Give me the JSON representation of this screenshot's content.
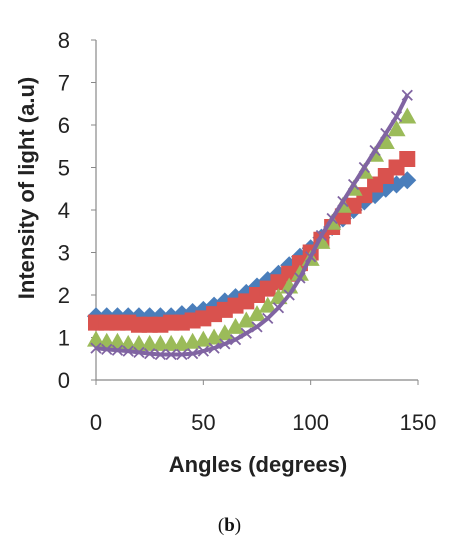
{
  "chart_data": {
    "type": "line",
    "xlabel": "Angles (degrees)",
    "ylabel": "Intensity of light (a.u)",
    "xlim": [
      0,
      150
    ],
    "ylim": [
      0,
      8
    ],
    "x_ticks": [
      0,
      50,
      100,
      150
    ],
    "y_ticks": [
      0,
      1,
      2,
      3,
      4,
      5,
      6,
      7,
      8
    ],
    "grid": false,
    "x": [
      0,
      5,
      10,
      15,
      20,
      25,
      30,
      35,
      40,
      45,
      50,
      55,
      60,
      65,
      70,
      75,
      80,
      85,
      90,
      95,
      100,
      105,
      110,
      115,
      120,
      125,
      130,
      135,
      140,
      145
    ],
    "series": [
      {
        "marker": "diamond",
        "color": "#4a7ebb",
        "values": [
          1.5,
          1.5,
          1.5,
          1.5,
          1.5,
          1.5,
          1.5,
          1.5,
          1.55,
          1.6,
          1.65,
          1.75,
          1.85,
          1.95,
          2.05,
          2.2,
          2.35,
          2.5,
          2.7,
          2.9,
          3.1,
          3.35,
          3.6,
          3.8,
          4.0,
          4.2,
          4.35,
          4.5,
          4.6,
          4.7
        ]
      },
      {
        "marker": "square",
        "color": "#d9524e",
        "values": [
          1.35,
          1.35,
          1.35,
          1.35,
          1.3,
          1.3,
          1.3,
          1.35,
          1.35,
          1.4,
          1.45,
          1.55,
          1.65,
          1.75,
          1.85,
          2.0,
          2.15,
          2.3,
          2.5,
          2.75,
          3.0,
          3.3,
          3.6,
          3.85,
          4.1,
          4.35,
          4.6,
          4.8,
          5.0,
          5.2
        ]
      },
      {
        "marker": "triangle",
        "color": "#9bbb59",
        "values": [
          0.95,
          0.9,
          0.9,
          0.85,
          0.85,
          0.85,
          0.85,
          0.85,
          0.85,
          0.9,
          0.95,
          1.0,
          1.1,
          1.25,
          1.4,
          1.55,
          1.75,
          1.95,
          2.2,
          2.5,
          2.85,
          3.25,
          3.7,
          4.1,
          4.5,
          4.9,
          5.3,
          5.6,
          5.9,
          6.2
        ]
      },
      {
        "marker": "x",
        "color": "#8064a2",
        "line": true,
        "values": [
          0.75,
          0.72,
          0.7,
          0.68,
          0.65,
          0.62,
          0.6,
          0.6,
          0.6,
          0.62,
          0.68,
          0.75,
          0.85,
          0.95,
          1.1,
          1.25,
          1.45,
          1.7,
          2.0,
          2.4,
          2.9,
          3.4,
          3.8,
          4.2,
          4.6,
          5.0,
          5.4,
          5.8,
          6.2,
          6.7
        ]
      }
    ]
  },
  "caption": {
    "open": "(",
    "label": "b",
    "close": ")"
  }
}
